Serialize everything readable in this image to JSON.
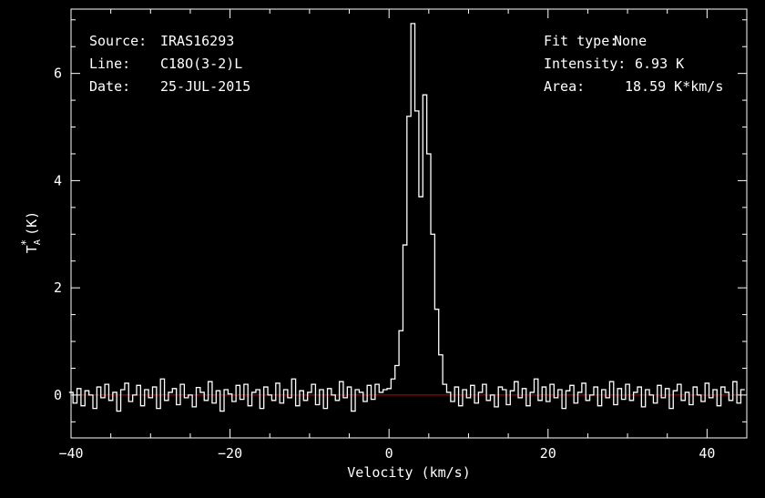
{
  "chart_data": {
    "type": "line",
    "title": "",
    "xlabel": "Velocity (km/s)",
    "ylabel": "T_A^* (K)",
    "xlim": [
      -40,
      45
    ],
    "ylim": [
      -0.8,
      7.2
    ],
    "xticks": [
      -40,
      -20,
      0,
      20,
      40
    ],
    "yticks": [
      0,
      2,
      4,
      6
    ],
    "xtick_labels": [
      "−40",
      "−20",
      "0",
      "20",
      "40"
    ],
    "ytick_labels": [
      "0",
      "2",
      "4",
      "6"
    ],
    "grid": false,
    "baseline": 0,
    "series": [
      {
        "style": "histogram",
        "x": [
          -40.0,
          -39.5,
          -39.0,
          -38.5,
          -38.0,
          -37.5,
          -37.0,
          -36.5,
          -36.0,
          -35.5,
          -35.0,
          -34.5,
          -34.0,
          -33.5,
          -33.0,
          -32.5,
          -32.0,
          -31.5,
          -31.0,
          -30.5,
          -30.0,
          -29.5,
          -29.0,
          -28.5,
          -28.0,
          -27.5,
          -27.0,
          -26.5,
          -26.0,
          -25.5,
          -25.0,
          -24.5,
          -24.0,
          -23.5,
          -23.0,
          -22.5,
          -22.0,
          -21.5,
          -21.0,
          -20.5,
          -20.0,
          -19.5,
          -19.0,
          -18.5,
          -18.0,
          -17.5,
          -17.0,
          -16.5,
          -16.0,
          -15.5,
          -15.0,
          -14.5,
          -14.0,
          -13.5,
          -13.0,
          -12.5,
          -12.0,
          -11.5,
          -11.0,
          -10.5,
          -10.0,
          -9.5,
          -9.0,
          -8.5,
          -8.0,
          -7.5,
          -7.0,
          -6.5,
          -6.0,
          -5.5,
          -5.0,
          -4.5,
          -4.0,
          -3.5,
          -3.0,
          -2.5,
          -2.0,
          -1.5,
          -1.0,
          -0.5,
          0.0,
          0.5,
          1.0,
          1.5,
          2.0,
          2.5,
          3.0,
          3.5,
          4.0,
          4.5,
          5.0,
          5.5,
          6.0,
          6.5,
          7.0,
          7.5,
          8.0,
          8.5,
          9.0,
          9.5,
          10.0,
          10.5,
          11.0,
          11.5,
          12.0,
          12.5,
          13.0,
          13.5,
          14.0,
          14.5,
          15.0,
          15.5,
          16.0,
          16.5,
          17.0,
          17.5,
          18.0,
          18.5,
          19.0,
          19.5,
          20.0,
          20.5,
          21.0,
          21.5,
          22.0,
          22.5,
          23.0,
          23.5,
          24.0,
          24.5,
          25.0,
          25.5,
          26.0,
          26.5,
          27.0,
          27.5,
          28.0,
          28.5,
          29.0,
          29.5,
          30.0,
          30.5,
          31.0,
          31.5,
          32.0,
          32.5,
          33.0,
          33.5,
          34.0,
          34.5,
          35.0,
          35.5,
          36.0,
          36.5,
          37.0,
          37.5,
          38.0,
          38.5,
          39.0,
          39.5,
          40.0,
          40.5,
          41.0,
          41.5,
          42.0,
          42.5,
          43.0,
          43.5,
          44.0,
          44.5
        ],
        "y": [
          0.05,
          -0.15,
          0.12,
          -0.2,
          0.08,
          0.0,
          -0.25,
          0.15,
          -0.05,
          0.2,
          -0.1,
          0.05,
          -0.3,
          0.1,
          0.22,
          -0.12,
          0.0,
          0.18,
          -0.2,
          0.1,
          -0.05,
          0.15,
          -0.25,
          0.3,
          -0.1,
          0.05,
          0.12,
          -0.18,
          0.2,
          -0.05,
          0.0,
          -0.22,
          0.14,
          0.05,
          -0.1,
          0.25,
          -0.15,
          0.08,
          -0.3,
          0.1,
          0.02,
          -0.12,
          0.18,
          -0.08,
          0.2,
          -0.2,
          0.05,
          0.1,
          -0.25,
          0.15,
          0.0,
          -0.1,
          0.22,
          -0.15,
          0.1,
          -0.05,
          0.3,
          -0.2,
          0.08,
          -0.1,
          0.05,
          0.2,
          -0.18,
          0.1,
          -0.25,
          0.12,
          0.0,
          -0.1,
          0.25,
          -0.05,
          0.15,
          -0.3,
          0.1,
          0.05,
          -0.12,
          0.18,
          -0.08,
          0.2,
          0.05,
          0.1,
          0.12,
          0.3,
          0.55,
          1.2,
          2.8,
          5.2,
          6.93,
          5.3,
          3.7,
          5.6,
          4.5,
          3.0,
          1.6,
          0.75,
          0.2,
          0.05,
          -0.12,
          0.15,
          -0.2,
          0.1,
          -0.05,
          0.18,
          -0.15,
          0.05,
          0.2,
          -0.1,
          0.0,
          -0.22,
          0.15,
          0.1,
          -0.18,
          0.08,
          0.25,
          -0.05,
          0.12,
          -0.2,
          0.05,
          0.3,
          -0.1,
          0.15,
          -0.12,
          0.2,
          -0.05,
          0.1,
          -0.25,
          0.08,
          0.18,
          -0.15,
          0.05,
          0.22,
          -0.1,
          0.0,
          0.15,
          -0.2,
          0.1,
          -0.05,
          0.25,
          -0.18,
          0.12,
          -0.08,
          0.2,
          -0.1,
          0.05,
          0.15,
          -0.22,
          0.1,
          0.0,
          -0.15,
          0.18,
          -0.05,
          0.12,
          -0.25,
          0.08,
          0.2,
          -0.1,
          0.05,
          -0.18,
          0.15,
          0.0,
          -0.12,
          0.22,
          -0.05,
          0.1,
          -0.2,
          0.15,
          0.05,
          -0.1,
          0.25,
          -0.15,
          0.1
        ],
        "color": "#ffffff"
      }
    ],
    "baseline_color": "#cc0000",
    "annotations_left": [
      {
        "label": "Source:",
        "value": "IRAS16293"
      },
      {
        "label": "Line:",
        "value": "C18O(3-2)L"
      },
      {
        "label": "Date:",
        "value": "25-JUL-2015"
      }
    ],
    "annotations_right": [
      {
        "label": "Fit type:",
        "value": "None"
      },
      {
        "label": "Intensity:",
        "value": "6.93 K"
      },
      {
        "label": "Area:",
        "value": "18.59 K*km/s"
      }
    ]
  }
}
